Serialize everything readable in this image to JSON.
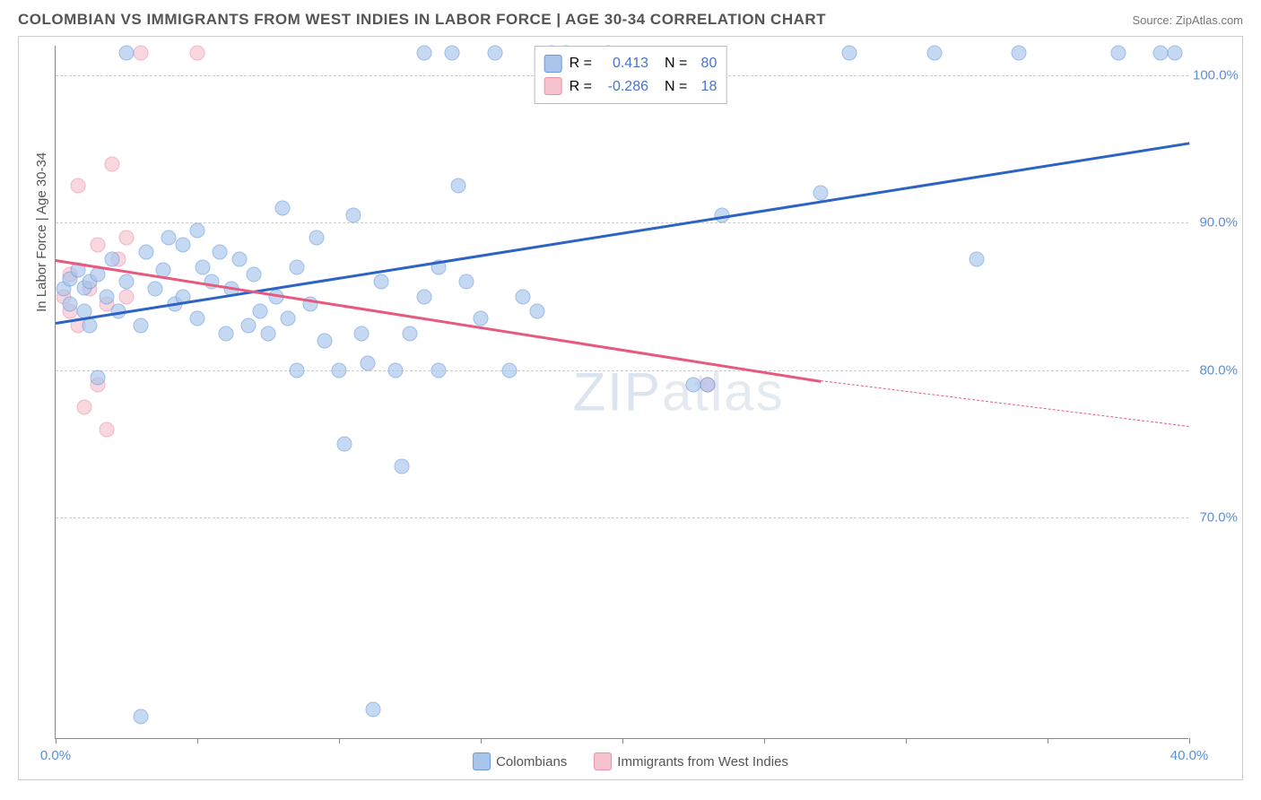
{
  "header": {
    "title": "COLOMBIAN VS IMMIGRANTS FROM WEST INDIES IN LABOR FORCE | AGE 30-34 CORRELATION CHART",
    "source": "Source: ZipAtlas.com"
  },
  "chart": {
    "type": "scatter",
    "y_axis_label": "In Labor Force | Age 30-34",
    "xlim": [
      0,
      40
    ],
    "ylim": [
      55,
      102
    ],
    "x_ticks": [
      0,
      5,
      10,
      15,
      20,
      25,
      30,
      35,
      40
    ],
    "x_tick_labels": [
      "0.0%",
      "",
      "",
      "",
      "",
      "",
      "",
      "",
      "40.0%"
    ],
    "y_ticks": [
      70,
      80,
      90,
      100
    ],
    "y_tick_labels": [
      "70.0%",
      "80.0%",
      "90.0%",
      "100.0%"
    ],
    "background_color": "#ffffff",
    "grid_color": "#cccccc",
    "axis_color": "#888888",
    "tick_label_color": "#5b8fd6",
    "point_radius": 8.5,
    "point_opacity": 0.65,
    "series": [
      {
        "name": "Colombians",
        "fill_color": "#a9c5ec",
        "stroke_color": "#6a9add",
        "line_color": "#2d63c4",
        "R": "0.413",
        "N": "80",
        "trend": {
          "x1": 0,
          "y1": 83.3,
          "x2": 40,
          "y2": 95.5
        },
        "points": [
          {
            "x": 0.3,
            "y": 85.5
          },
          {
            "x": 0.5,
            "y": 86.2
          },
          {
            "x": 0.5,
            "y": 84.5
          },
          {
            "x": 0.8,
            "y": 86.8
          },
          {
            "x": 1.0,
            "y": 84.0
          },
          {
            "x": 1.0,
            "y": 85.6
          },
          {
            "x": 1.2,
            "y": 83.0
          },
          {
            "x": 1.2,
            "y": 86.0
          },
          {
            "x": 1.5,
            "y": 79.5
          },
          {
            "x": 1.5,
            "y": 86.5
          },
          {
            "x": 1.8,
            "y": 85.0
          },
          {
            "x": 2.0,
            "y": 87.5
          },
          {
            "x": 2.2,
            "y": 84.0
          },
          {
            "x": 2.5,
            "y": 101.5
          },
          {
            "x": 2.5,
            "y": 86.0
          },
          {
            "x": 3.0,
            "y": 83.0
          },
          {
            "x": 3.0,
            "y": 56.5
          },
          {
            "x": 3.2,
            "y": 88.0
          },
          {
            "x": 3.5,
            "y": 85.5
          },
          {
            "x": 3.8,
            "y": 86.8
          },
          {
            "x": 4.0,
            "y": 89.0
          },
          {
            "x": 4.2,
            "y": 84.5
          },
          {
            "x": 4.5,
            "y": 88.5
          },
          {
            "x": 4.5,
            "y": 85.0
          },
          {
            "x": 5.0,
            "y": 89.5
          },
          {
            "x": 5.0,
            "y": 83.5
          },
          {
            "x": 5.2,
            "y": 87.0
          },
          {
            "x": 5.5,
            "y": 86.0
          },
          {
            "x": 5.8,
            "y": 88.0
          },
          {
            "x": 6.0,
            "y": 82.5
          },
          {
            "x": 6.2,
            "y": 85.5
          },
          {
            "x": 6.5,
            "y": 87.5
          },
          {
            "x": 6.8,
            "y": 83.0
          },
          {
            "x": 7.0,
            "y": 86.5
          },
          {
            "x": 7.2,
            "y": 84.0
          },
          {
            "x": 7.5,
            "y": 82.5
          },
          {
            "x": 7.8,
            "y": 85.0
          },
          {
            "x": 8.0,
            "y": 91.0
          },
          {
            "x": 8.2,
            "y": 83.5
          },
          {
            "x": 8.5,
            "y": 80.0
          },
          {
            "x": 8.5,
            "y": 87.0
          },
          {
            "x": 9.0,
            "y": 84.5
          },
          {
            "x": 9.2,
            "y": 89.0
          },
          {
            "x": 9.5,
            "y": 82.0
          },
          {
            "x": 10.0,
            "y": 80.0
          },
          {
            "x": 10.2,
            "y": 75.0
          },
          {
            "x": 10.5,
            "y": 90.5
          },
          {
            "x": 10.8,
            "y": 82.5
          },
          {
            "x": 11.0,
            "y": 80.5
          },
          {
            "x": 11.2,
            "y": 57.0
          },
          {
            "x": 11.5,
            "y": 86.0
          },
          {
            "x": 12.0,
            "y": 80.0
          },
          {
            "x": 12.2,
            "y": 73.5
          },
          {
            "x": 12.5,
            "y": 82.5
          },
          {
            "x": 13.0,
            "y": 101.5
          },
          {
            "x": 13.0,
            "y": 85.0
          },
          {
            "x": 13.5,
            "y": 87.0
          },
          {
            "x": 13.5,
            "y": 80.0
          },
          {
            "x": 14.0,
            "y": 101.5
          },
          {
            "x": 14.2,
            "y": 92.5
          },
          {
            "x": 14.5,
            "y": 86.0
          },
          {
            "x": 15.0,
            "y": 83.5
          },
          {
            "x": 15.5,
            "y": 101.5
          },
          {
            "x": 16.0,
            "y": 80.0
          },
          {
            "x": 16.5,
            "y": 85.0
          },
          {
            "x": 17.0,
            "y": 84.0
          },
          {
            "x": 17.5,
            "y": 101.5
          },
          {
            "x": 18.0,
            "y": 101.5
          },
          {
            "x": 19.5,
            "y": 101.5
          },
          {
            "x": 22.5,
            "y": 79.0
          },
          {
            "x": 23.0,
            "y": 79.0
          },
          {
            "x": 23.5,
            "y": 90.5
          },
          {
            "x": 27.0,
            "y": 92.0
          },
          {
            "x": 28.0,
            "y": 101.5
          },
          {
            "x": 31.0,
            "y": 101.5
          },
          {
            "x": 32.5,
            "y": 87.5
          },
          {
            "x": 34.0,
            "y": 101.5
          },
          {
            "x": 37.5,
            "y": 101.5
          },
          {
            "x": 39.0,
            "y": 101.5
          },
          {
            "x": 39.5,
            "y": 101.5
          }
        ]
      },
      {
        "name": "Immigrants from West Indies",
        "fill_color": "#f5c2ce",
        "stroke_color": "#ea92a8",
        "line_color": "#e8597e",
        "R": "-0.286",
        "N": "18",
        "trend": {
          "x1": 0,
          "y1": 87.5,
          "x2": 27,
          "y2": 79.3
        },
        "trend_dashed": {
          "x1": 27,
          "y1": 79.3,
          "x2": 40,
          "y2": 76.2
        },
        "points": [
          {
            "x": 0.3,
            "y": 85.0
          },
          {
            "x": 0.5,
            "y": 84.0
          },
          {
            "x": 0.5,
            "y": 86.5
          },
          {
            "x": 0.8,
            "y": 83.0
          },
          {
            "x": 0.8,
            "y": 92.5
          },
          {
            "x": 1.0,
            "y": 77.5
          },
          {
            "x": 1.2,
            "y": 85.5
          },
          {
            "x": 1.5,
            "y": 88.5
          },
          {
            "x": 1.5,
            "y": 79.0
          },
          {
            "x": 1.8,
            "y": 84.5
          },
          {
            "x": 1.8,
            "y": 76.0
          },
          {
            "x": 2.0,
            "y": 94.0
          },
          {
            "x": 2.2,
            "y": 87.5
          },
          {
            "x": 2.5,
            "y": 85.0
          },
          {
            "x": 2.5,
            "y": 89.0
          },
          {
            "x": 3.0,
            "y": 101.5
          },
          {
            "x": 5.0,
            "y": 101.5
          },
          {
            "x": 23.0,
            "y": 79.0
          }
        ]
      }
    ],
    "stats_legend": {
      "rows": [
        {
          "swatch_fill": "#a9c5ec",
          "swatch_stroke": "#6a9add",
          "r_label": "R =",
          "r_value": "0.413",
          "n_label": "N =",
          "n_value": "80"
        },
        {
          "swatch_fill": "#f5c2ce",
          "swatch_stroke": "#ea92a8",
          "r_label": "R =",
          "r_value": "-0.286",
          "n_label": "N =",
          "n_value": "18"
        }
      ]
    },
    "bottom_legend": [
      {
        "swatch_fill": "#a9c5ec",
        "swatch_stroke": "#6a9add",
        "label": "Colombians"
      },
      {
        "swatch_fill": "#f5c2ce",
        "swatch_stroke": "#ea92a8",
        "label": "Immigrants from West Indies"
      }
    ],
    "watermark": {
      "zip": "ZIP",
      "atlas": "atlas"
    }
  }
}
